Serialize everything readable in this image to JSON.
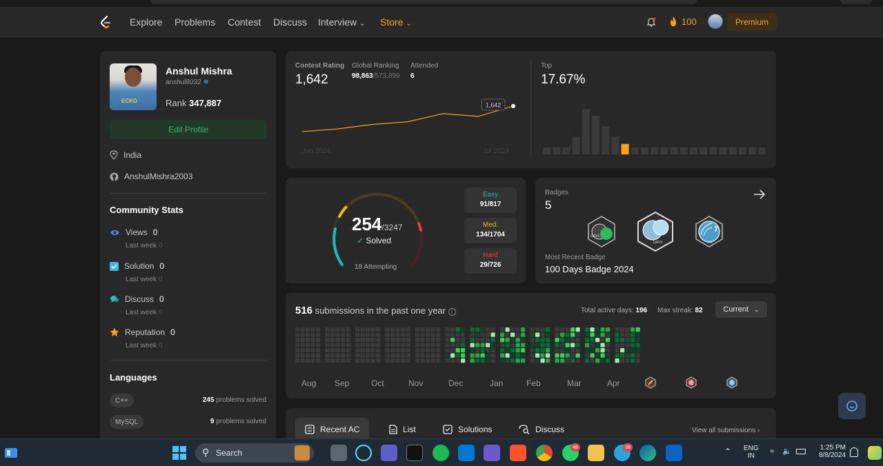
{
  "nav": {
    "items": [
      "Explore",
      "Problems",
      "Contest",
      "Discuss",
      "Interview",
      "Store"
    ],
    "streak_count": "100",
    "premium_label": "Premium"
  },
  "profile": {
    "name": "Anshul Mishra",
    "handle": "anshul8032",
    "rank_label": "Rank",
    "rank_value": "347,887",
    "edit_label": "Edit Profile",
    "location": "India",
    "github": "AnshulMishra2003",
    "shirt_text": "ECKO"
  },
  "community": {
    "title": "Community Stats",
    "stats": [
      {
        "label": "Views",
        "value": "0",
        "sub": "Last week",
        "sub_value": "0",
        "color": "#3d8bfd"
      },
      {
        "label": "Solution",
        "value": "0",
        "sub": "Last week",
        "sub_value": "0",
        "color": "#3dbbdd"
      },
      {
        "label": "Discuss",
        "value": "0",
        "sub": "Last week",
        "sub_value": "0",
        "color": "#2cbbaa"
      },
      {
        "label": "Reputation",
        "value": "0",
        "sub": "Last week",
        "sub_value": "0",
        "color": "#ffa116"
      }
    ]
  },
  "languages": {
    "title": "Languages",
    "items": [
      {
        "name": "C++",
        "count": "245",
        "suffix": "problems solved"
      },
      {
        "name": "MySQL",
        "count": "9",
        "suffix": "problems solved"
      }
    ]
  },
  "contest": {
    "rating_label": "Contest Rating",
    "rating_value": "1,642",
    "global_label": "Global Ranking",
    "global_value": "98,863",
    "global_total": "/573,899",
    "attended_label": "Attended",
    "attended_value": "6",
    "tooltip": "1,642",
    "x_start": "Jun 2024",
    "x_end": "Jul 2024",
    "top_label": "Top",
    "top_value": "17.67%"
  },
  "chart_data": {
    "type": "line",
    "title": "Contest Rating",
    "x": [
      1,
      2,
      3,
      4,
      5,
      6,
      7
    ],
    "y": [
      1500,
      1515,
      1540,
      1555,
      1600,
      1585,
      1642
    ],
    "histogram": [
      2,
      2,
      2,
      5,
      13,
      11,
      8,
      5,
      3,
      2,
      2,
      2,
      2,
      2,
      2,
      2,
      2,
      2,
      2,
      2,
      2,
      2,
      2
    ],
    "histogram_highlight_index": 8
  },
  "solved": {
    "count": "254",
    "total": "/3247",
    "solved_label": "Solved",
    "attempting": "18 Attempting",
    "easy": {
      "label": "Easy",
      "value": "91/817",
      "color": "#1cbaba"
    },
    "medium": {
      "label": "Med.",
      "value": "134/1704",
      "color": "#ffb700"
    },
    "hard": {
      "label": "Hard",
      "value": "29/726",
      "color": "#f63737"
    }
  },
  "badges": {
    "label": "Badges",
    "count": "5",
    "recent_label": "Most Recent Badge",
    "recent_name": "100 Days Badge 2024",
    "badge1_text": "DAYS",
    "badge2_text": "DAYS",
    "badge3_number": "7",
    "badge3_text": "JUL"
  },
  "submissions": {
    "count": "516",
    "caption": "submissions in the past one year",
    "active_label": "Total active days:",
    "active_value": "196",
    "streak_label": "Max streak:",
    "streak_value": "82",
    "current_label": "Current",
    "months": [
      "Aug",
      "Sep",
      "Oct",
      "Nov",
      "Dec",
      "Jan",
      "Feb",
      "Mar",
      "Apr"
    ]
  },
  "tabs": {
    "items": [
      "Recent AC",
      "List",
      "Solutions",
      "Discuss"
    ],
    "view_all": "View all submissions"
  },
  "taskbar": {
    "search": "Search",
    "lang1": "ENG",
    "lang2": "IN",
    "time": "1:25 PM",
    "date": "8/8/2024",
    "whatsapp_badge": "48",
    "telegram_badge": "39"
  }
}
